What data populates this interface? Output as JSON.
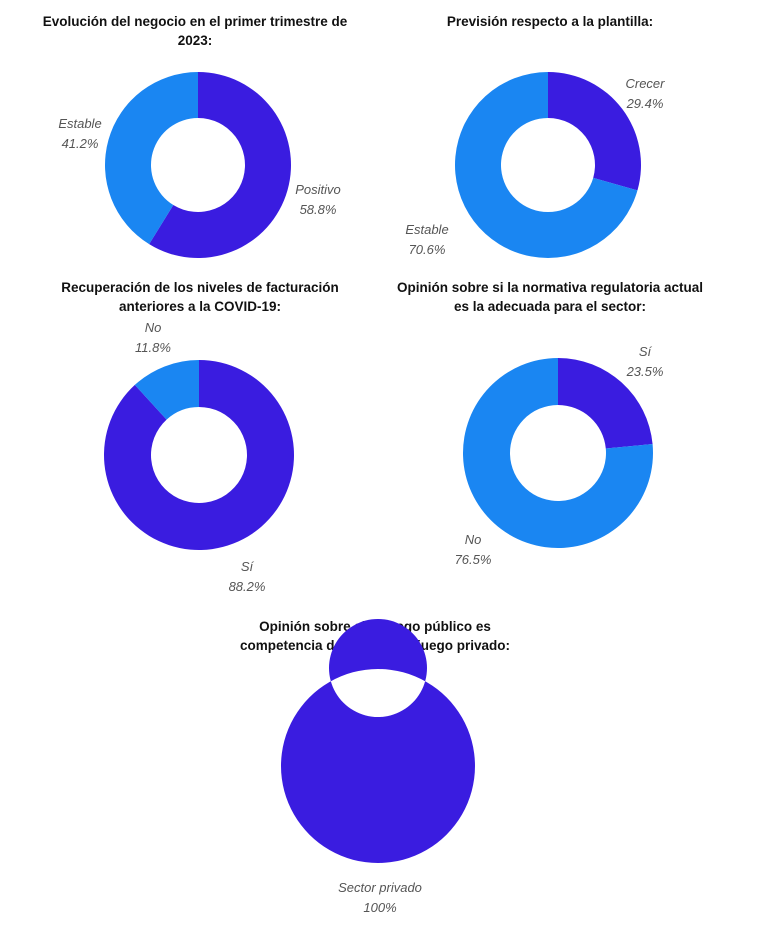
{
  "chart_data": [
    {
      "type": "pie",
      "title": "Evolución del negocio en el primer trimestre de 2023:",
      "categories": [
        "Positivo",
        "Estable"
      ],
      "values": [
        58.8,
        41.2
      ],
      "labels": [
        "58.8%",
        "41.2%"
      ],
      "colors": [
        "#3a1ce0",
        "#1a86f2"
      ],
      "donut": true
    },
    {
      "type": "pie",
      "title": "Previsión respecto a la plantilla:",
      "categories": [
        "Crecer",
        "Estable"
      ],
      "values": [
        29.4,
        70.6
      ],
      "labels": [
        "29.4%",
        "70.6%"
      ],
      "colors": [
        "#3a1ce0",
        "#1a86f2"
      ],
      "donut": true
    },
    {
      "type": "pie",
      "title": "Recuperación de los niveles de facturación anteriores a la COVID-19:",
      "categories": [
        "Sí",
        "No"
      ],
      "values": [
        88.2,
        11.8
      ],
      "labels": [
        "88.2%",
        "11.8%"
      ],
      "colors": [
        "#3a1ce0",
        "#1a86f2"
      ],
      "donut": true
    },
    {
      "type": "pie",
      "title": "Opinión sobre si la normativa regulatoria actual es la adecuada para el sector:",
      "categories": [
        "Sí",
        "No"
      ],
      "values": [
        23.5,
        76.5
      ],
      "labels": [
        "23.5%",
        "76.5%"
      ],
      "colors": [
        "#3a1ce0",
        "#1a86f2"
      ],
      "donut": true
    },
    {
      "type": "pie",
      "title": "Opinión sobre si el juego público es competencia del sector del juego privado:",
      "categories": [
        "Sector privado"
      ],
      "values": [
        100
      ],
      "labels": [
        "100%"
      ],
      "colors": [
        "#3a1ce0"
      ],
      "donut": true
    }
  ]
}
